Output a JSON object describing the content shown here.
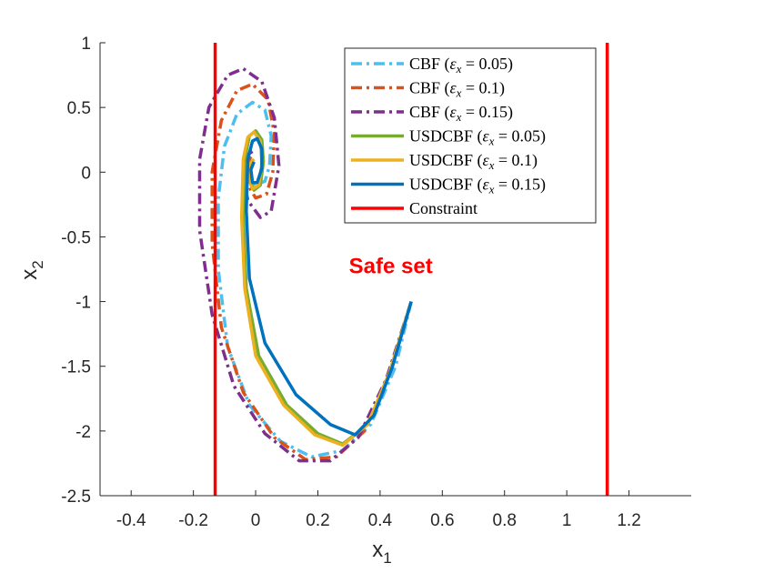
{
  "chart_data": {
    "type": "line",
    "title": "",
    "xlabel": {
      "base": "x",
      "sub": "1"
    },
    "ylabel": {
      "base": "x",
      "sub": "2"
    },
    "xlim": [
      -0.5,
      1.4
    ],
    "ylim": [
      -2.5,
      1.0
    ],
    "xticks": [
      -0.4,
      -0.2,
      0,
      0.2,
      0.4,
      0.6,
      0.8,
      1,
      1.2
    ],
    "xtick_labels": [
      "-0.4",
      "-0.2",
      "0",
      "0.2",
      "0.4",
      "0.6",
      "0.8",
      "1",
      "1.2"
    ],
    "yticks": [
      1,
      0.5,
      0,
      -0.5,
      -1,
      -1.5,
      -2,
      -2.5
    ],
    "ytick_labels": [
      "1",
      "0.5",
      "0",
      "-0.5",
      "-1",
      "-1.5",
      "-2",
      "-2.5"
    ],
    "grid": false,
    "legend_location": "top-right",
    "annotation": {
      "text": "Safe set",
      "x": 0.3,
      "y": -0.78,
      "color": "#ff0000"
    },
    "series": [
      {
        "name": "CBF (ε_x = 0.05)",
        "label_prefix": "CBF (",
        "eps_sub": "x",
        "eps_value": " = 0.05)",
        "color": "#4dbeee",
        "style": "dashdot",
        "points": [
          [
            0.5,
            -1.0
          ],
          [
            0.45,
            -1.5
          ],
          [
            0.37,
            -1.95
          ],
          [
            0.28,
            -2.15
          ],
          [
            0.18,
            -2.2
          ],
          [
            0.08,
            -2.08
          ],
          [
            -0.02,
            -1.8
          ],
          [
            -0.09,
            -1.35
          ],
          [
            -0.12,
            -0.75
          ],
          [
            -0.12,
            -0.2
          ],
          [
            -0.1,
            0.2
          ],
          [
            -0.06,
            0.45
          ],
          [
            -0.01,
            0.54
          ],
          [
            0.03,
            0.48
          ],
          [
            0.05,
            0.28
          ],
          [
            0.045,
            0.05
          ],
          [
            0.03,
            -0.07
          ],
          [
            0.0,
            -0.1
          ],
          [
            -0.02,
            -0.04
          ],
          [
            -0.02,
            0.05
          ]
        ]
      },
      {
        "name": "CBF (ε_x = 0.1)",
        "label_prefix": "CBF (",
        "eps_sub": "x",
        "eps_value": " = 0.1)",
        "color": "#d95319",
        "style": "dashdot",
        "points": [
          [
            0.5,
            -1.0
          ],
          [
            0.43,
            -1.55
          ],
          [
            0.35,
            -2.0
          ],
          [
            0.26,
            -2.2
          ],
          [
            0.16,
            -2.22
          ],
          [
            0.06,
            -2.05
          ],
          [
            -0.04,
            -1.7
          ],
          [
            -0.11,
            -1.2
          ],
          [
            -0.14,
            -0.55
          ],
          [
            -0.14,
            -0.0
          ],
          [
            -0.11,
            0.4
          ],
          [
            -0.06,
            0.63
          ],
          [
            -0.01,
            0.68
          ],
          [
            0.04,
            0.56
          ],
          [
            0.06,
            0.3
          ],
          [
            0.055,
            0.0
          ],
          [
            0.035,
            -0.17
          ],
          [
            0.0,
            -0.2
          ],
          [
            -0.025,
            -0.1
          ],
          [
            -0.03,
            0.05
          ],
          [
            -0.015,
            0.12
          ]
        ]
      },
      {
        "name": "CBF (ε_x = 0.15)",
        "label_prefix": "CBF (",
        "eps_sub": "x",
        "eps_value": " = 0.15)",
        "color": "#7e2f8e",
        "style": "dashdot",
        "points": [
          [
            0.5,
            -1.0
          ],
          [
            0.42,
            -1.6
          ],
          [
            0.33,
            -2.05
          ],
          [
            0.24,
            -2.23
          ],
          [
            0.14,
            -2.23
          ],
          [
            0.03,
            -2.02
          ],
          [
            -0.07,
            -1.65
          ],
          [
            -0.14,
            -1.1
          ],
          [
            -0.18,
            -0.45
          ],
          [
            -0.18,
            0.1
          ],
          [
            -0.15,
            0.5
          ],
          [
            -0.09,
            0.75
          ],
          [
            -0.04,
            0.8
          ],
          [
            0.02,
            0.7
          ],
          [
            0.06,
            0.42
          ],
          [
            0.075,
            0.05
          ],
          [
            0.05,
            -0.3
          ],
          [
            0.015,
            -0.35
          ],
          [
            -0.025,
            -0.22
          ],
          [
            -0.04,
            -0.02
          ],
          [
            -0.03,
            0.13
          ],
          [
            -0.01,
            0.16
          ]
        ]
      },
      {
        "name": "USDCBF (ε_x = 0.05)",
        "label_prefix": "USDCBF (",
        "eps_sub": "x",
        "eps_value": " = 0.05)",
        "color": "#77ac30",
        "style": "solid",
        "points": [
          [
            0.5,
            -1.0
          ],
          [
            0.43,
            -1.55
          ],
          [
            0.36,
            -1.95
          ],
          [
            0.28,
            -2.1
          ],
          [
            0.2,
            -2.02
          ],
          [
            0.1,
            -1.8
          ],
          [
            0.01,
            -1.42
          ],
          [
            -0.03,
            -0.9
          ],
          [
            -0.04,
            -0.35
          ],
          [
            -0.035,
            0.1
          ],
          [
            -0.02,
            0.28
          ],
          [
            0.0,
            0.32
          ],
          [
            0.02,
            0.25
          ],
          [
            0.025,
            0.08
          ],
          [
            0.015,
            -0.1
          ],
          [
            -0.005,
            -0.14
          ],
          [
            -0.02,
            -0.05
          ],
          [
            -0.02,
            0.06
          ],
          [
            -0.005,
            0.1
          ]
        ]
      },
      {
        "name": "USDCBF (ε_x = 0.1)",
        "label_prefix": "USDCBF (",
        "eps_sub": "x",
        "eps_value": " = 0.1)",
        "color": "#edb120",
        "style": "solid",
        "points": [
          [
            0.5,
            -1.0
          ],
          [
            0.43,
            -1.55
          ],
          [
            0.36,
            -1.95
          ],
          [
            0.28,
            -2.11
          ],
          [
            0.19,
            -2.03
          ],
          [
            0.09,
            -1.8
          ],
          [
            0.0,
            -1.42
          ],
          [
            -0.035,
            -0.9
          ],
          [
            -0.045,
            -0.35
          ],
          [
            -0.04,
            0.1
          ],
          [
            -0.025,
            0.27
          ],
          [
            -0.005,
            0.31
          ],
          [
            0.015,
            0.24
          ],
          [
            0.02,
            0.07
          ],
          [
            0.01,
            -0.1
          ],
          [
            -0.01,
            -0.13
          ],
          [
            -0.022,
            -0.05
          ],
          [
            -0.02,
            0.06
          ],
          [
            -0.005,
            0.1
          ]
        ]
      },
      {
        "name": "USDCBF (ε_x = 0.15)",
        "label_prefix": "USDCBF (",
        "eps_sub": "x",
        "eps_value": " = 0.15)",
        "color": "#0072bd",
        "style": "solid",
        "points": [
          [
            0.5,
            -1.0
          ],
          [
            0.44,
            -1.5
          ],
          [
            0.38,
            -1.88
          ],
          [
            0.32,
            -2.03
          ],
          [
            0.24,
            -1.95
          ],
          [
            0.13,
            -1.72
          ],
          [
            0.03,
            -1.32
          ],
          [
            -0.02,
            -0.82
          ],
          [
            -0.03,
            -0.3
          ],
          [
            -0.025,
            0.1
          ],
          [
            -0.01,
            0.24
          ],
          [
            0.005,
            0.26
          ],
          [
            0.02,
            0.18
          ],
          [
            0.02,
            0.03
          ],
          [
            0.005,
            -0.08
          ],
          [
            -0.01,
            -0.08
          ],
          [
            -0.015,
            0.02
          ],
          [
            -0.005,
            0.08
          ]
        ]
      },
      {
        "name": "Constraint",
        "label_prefix": "Constraint",
        "eps_sub": "",
        "eps_value": "",
        "color": "#ff0000",
        "style": "solid",
        "vlines": [
          -0.13,
          1.13
        ]
      }
    ]
  }
}
